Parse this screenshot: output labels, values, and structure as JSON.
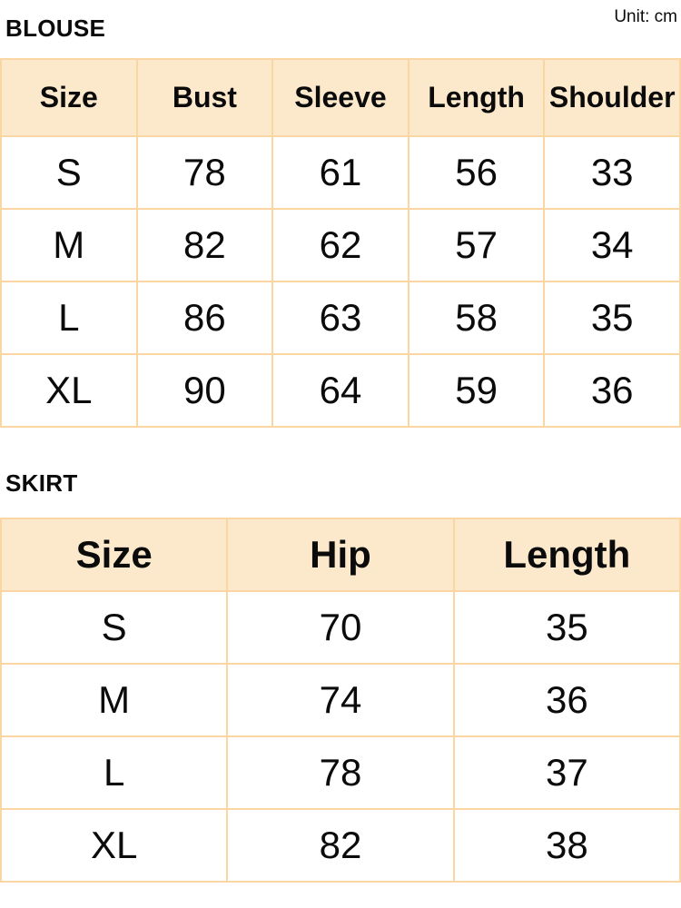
{
  "unit_label": "Unit: cm",
  "colors": {
    "header_bg": "#FCE9CC",
    "border": "#FAD7A2",
    "text": "#0B0B0B",
    "page_bg": "#FFFFFF"
  },
  "chart_data": [
    {
      "type": "table",
      "title": "BLOUSE",
      "columns": [
        "Size",
        "Bust",
        "Sleeve",
        "Length",
        "Shoulder"
      ],
      "rows": [
        [
          "S",
          78,
          61,
          56,
          33
        ],
        [
          "M",
          82,
          62,
          57,
          34
        ],
        [
          "L",
          86,
          63,
          58,
          35
        ],
        [
          "XL",
          90,
          64,
          59,
          36
        ]
      ]
    },
    {
      "type": "table",
      "title": "SKIRT",
      "columns": [
        "Size",
        "Hip",
        "Length"
      ],
      "rows": [
        [
          "S",
          70,
          35
        ],
        [
          "M",
          74,
          36
        ],
        [
          "L",
          78,
          37
        ],
        [
          "XL",
          82,
          38
        ]
      ]
    }
  ]
}
